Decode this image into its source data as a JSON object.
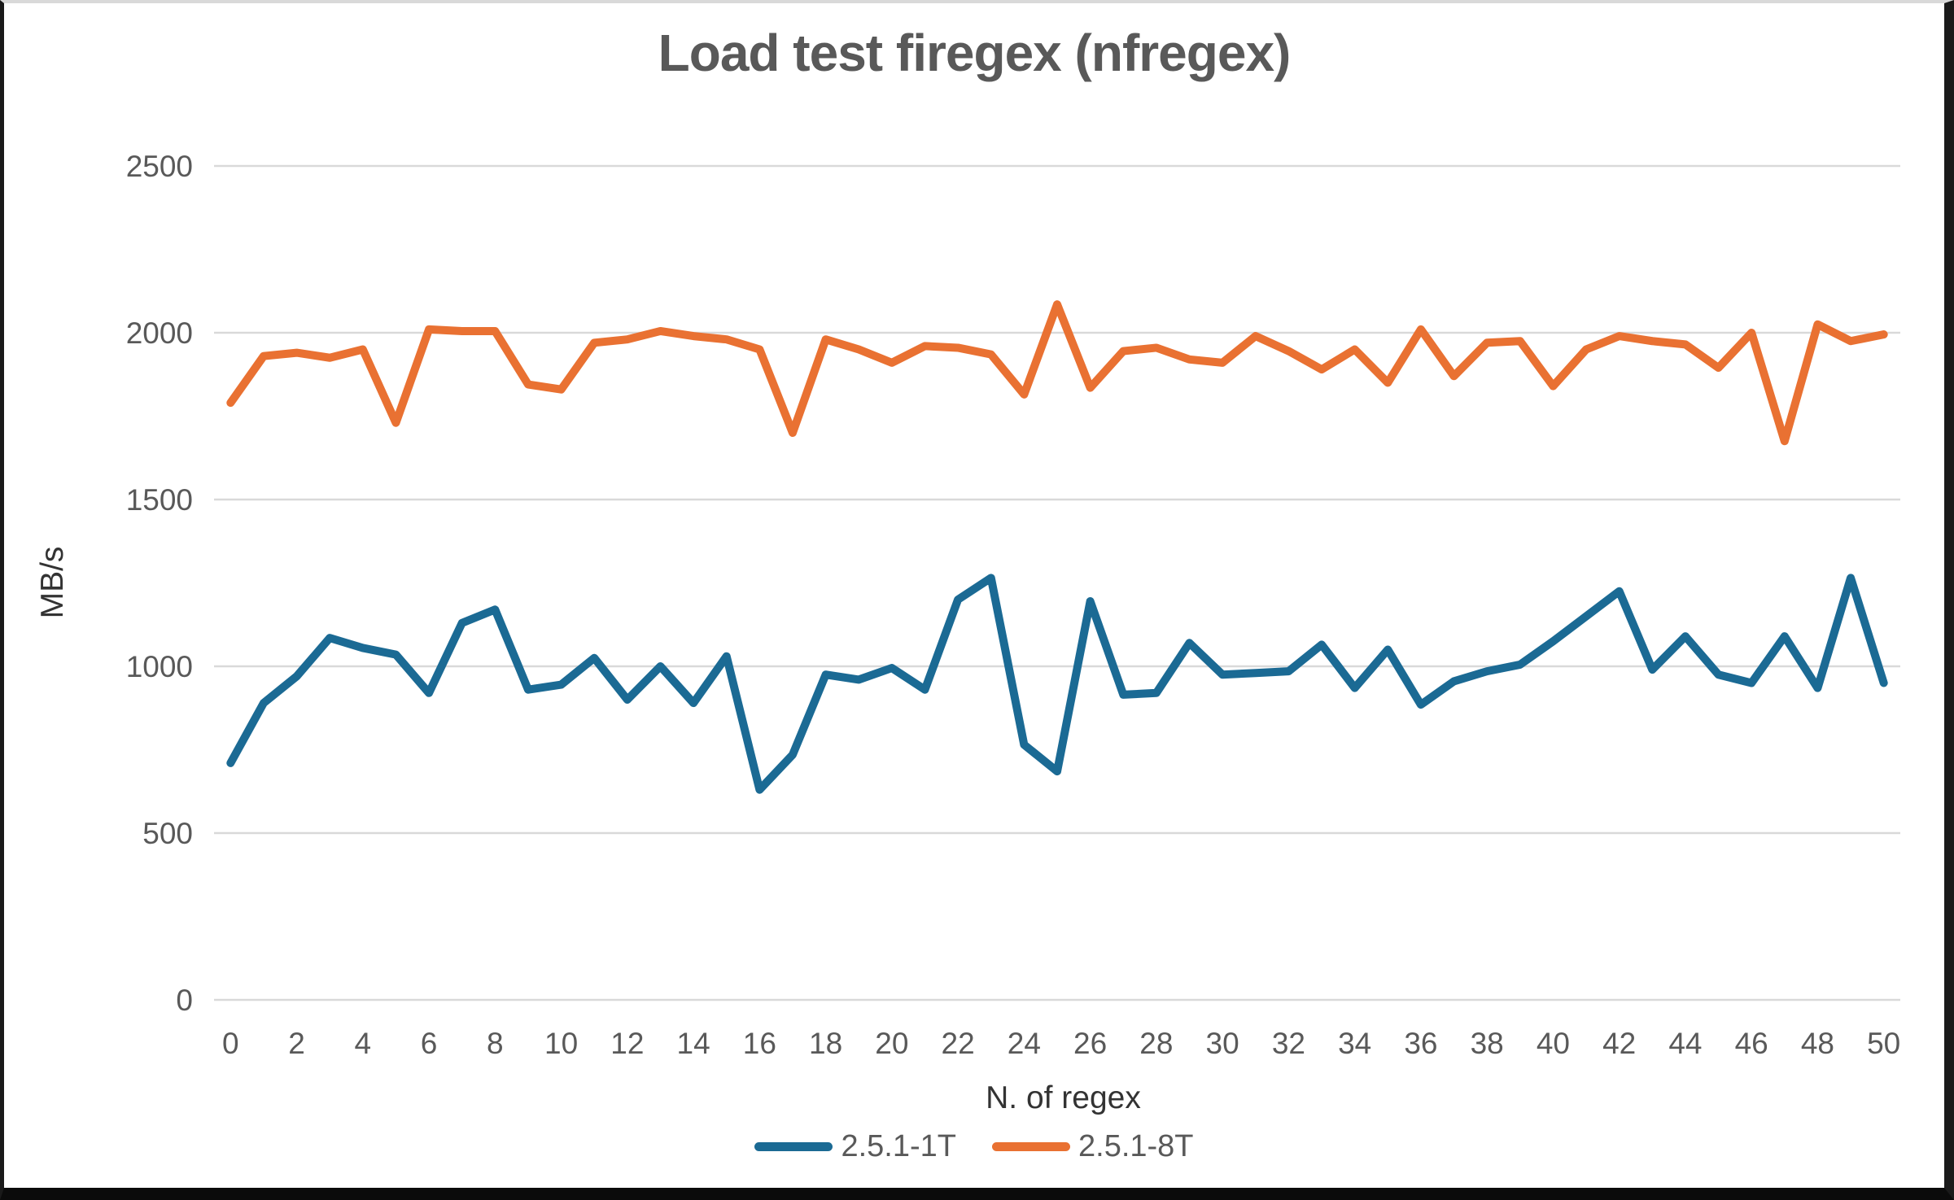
{
  "window": {
    "background": "#ffffff",
    "border_color": "#1a1a1a"
  },
  "chart_data": {
    "type": "line",
    "title": "Load test firegex (nfregex)",
    "xlabel": "N. of regex",
    "ylabel": "MB/s",
    "x": [
      0,
      1,
      2,
      3,
      4,
      5,
      6,
      7,
      8,
      9,
      10,
      11,
      12,
      13,
      14,
      15,
      16,
      17,
      18,
      19,
      20,
      21,
      22,
      23,
      24,
      25,
      26,
      27,
      28,
      29,
      30,
      31,
      32,
      33,
      34,
      35,
      36,
      37,
      38,
      39,
      40,
      41,
      42,
      43,
      44,
      45,
      46,
      47,
      48,
      49,
      50
    ],
    "x_label_step": 2,
    "ylim": [
      0,
      2500
    ],
    "yticks": [
      0,
      500,
      1000,
      1500,
      2000,
      2500
    ],
    "grid": true,
    "legend_position": "bottom",
    "colors": {
      "gridline": "#d9d9d9",
      "tick_text": "#595959",
      "title_text": "#595959"
    },
    "series": [
      {
        "name": "2.5.1-1T",
        "color": "#1b6a94",
        "values": [
          710,
          890,
          970,
          1085,
          1055,
          1035,
          920,
          1130,
          1170,
          930,
          945,
          1025,
          900,
          1000,
          890,
          1030,
          630,
          735,
          975,
          960,
          995,
          930,
          1200,
          1265,
          765,
          685,
          1195,
          915,
          920,
          1070,
          975,
          980,
          985,
          1065,
          935,
          1050,
          885,
          955,
          985,
          1005,
          1075,
          1150,
          1225,
          990,
          1090,
          975,
          950,
          1090,
          935,
          1265,
          950
        ]
      },
      {
        "name": "2.5.1-8T",
        "color": "#e97132",
        "values": [
          1790,
          1930,
          1940,
          1925,
          1950,
          1730,
          2010,
          2005,
          2005,
          1845,
          1830,
          1970,
          1980,
          2005,
          1990,
          1980,
          1950,
          1700,
          1980,
          1950,
          1910,
          1960,
          1955,
          1935,
          1815,
          2085,
          1835,
          1945,
          1955,
          1920,
          1910,
          1990,
          1945,
          1890,
          1950,
          1850,
          2010,
          1870,
          1970,
          1975,
          1840,
          1950,
          1990,
          1975,
          1965,
          1895,
          2000,
          1675,
          2025,
          1975,
          1995
        ]
      }
    ]
  }
}
